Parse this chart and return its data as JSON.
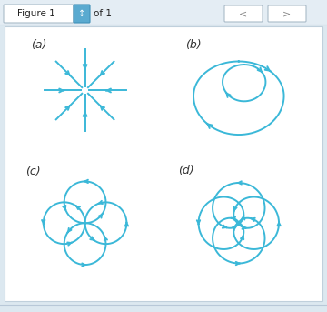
{
  "color": "#3BB8D8",
  "lw": 1.4,
  "bg_color": "#dce8f0",
  "panel_bg": "#ffffff",
  "labels": [
    "(a)",
    "(b)",
    "(c)",
    "(d)"
  ]
}
